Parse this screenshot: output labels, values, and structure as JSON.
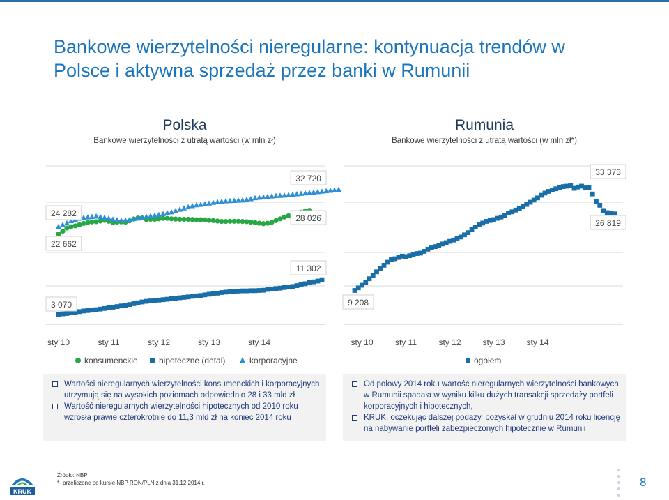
{
  "title": "Bankowe wierzytelności nieregularne: kontynuacja trendów w Polsce i aktywna sprzedaż przez banki w Rumunii",
  "left_panel": {
    "title": "Polska",
    "subtitle": "Bankowe wierzytelności z utratą wartości (w mln zł)",
    "legend": [
      "konsumenckie",
      "hipoteczne (detal)",
      "korporacyjne"
    ],
    "bullets": [
      "Wartości nieregularnych wierzytelności konsumenckich i korporacyjnych utrzymują się na wysokich poziomach odpowiednio 28 i 33 mld zł",
      "Wartość nieregularnych wierzytelności hipotecznych od 2010 roku wzrosła prawie czterokrotnie do 11,3 mld zł na koniec 2014 roku"
    ]
  },
  "right_panel": {
    "title": "Rumunia",
    "subtitle": "Bankowe wierzytelności z utratą wartości (w mln zł*)",
    "legend": [
      "ogółem"
    ],
    "bullets": [
      "Od połowy 2014 roku wartość nieregularnych wierzytelności bankowych w Rumunii spadała w wyniku kilku dużych transakcji sprzedaży portfeli korporacyjnych i hipotecznych,",
      "KRUK, oczekując dalszej podaży, pozyskał w grudniu 2014 roku licencję na nabywanie portfeli zabezpieczonych hipotecznie w Rumunii"
    ]
  },
  "footer": {
    "source": "Źródło: NBP",
    "note": "*- przeliczone po kursie NBP RON/PLN z dnia 31.12.2014 r.",
    "page": "8",
    "logo_text": "KRUK"
  },
  "colors": {
    "consumer": "#27a844",
    "mortgage": "#1a6ea8",
    "corporate": "#2f8fd6",
    "total": "#1a6ea8",
    "accent": "#1b75bc"
  },
  "chart_data": [
    {
      "type": "scatter",
      "title": "Polska",
      "x_ticks": [
        "sty 10",
        "sty 11",
        "sty 12",
        "sty 13",
        "sty 14"
      ],
      "x_start": "2010-01",
      "series": [
        {
          "name": "konsumenckie",
          "marker": "circle",
          "label_first": "22 662",
          "label_last": "28 026",
          "values": [
            22662,
            23300,
            24000,
            24300,
            24500,
            24750,
            25050,
            25250,
            25400,
            25450,
            25600,
            25750,
            25550,
            25200,
            25350,
            25400,
            25350,
            25650,
            26050,
            26300,
            26300,
            25950,
            26000,
            26000,
            26100,
            26200,
            26200,
            26100,
            26050,
            26000,
            26000,
            26000,
            25950,
            25900,
            25900,
            25850,
            25750,
            25700,
            25600,
            25500,
            25500,
            25550,
            25550,
            25550,
            25500,
            25450,
            25350,
            25250,
            25100,
            25000,
            25100,
            25300,
            25700,
            26100,
            26500,
            26800,
            27000,
            27300,
            27600,
            27900,
            28026
          ]
        },
        {
          "name": "hipoteczne (detal)",
          "marker": "square",
          "label_first": "3 070",
          "label_last": "11 302",
          "values": [
            3070,
            3150,
            3250,
            3400,
            3550,
            3700,
            3850,
            3950,
            4050,
            4150,
            4300,
            4450,
            4600,
            4750,
            4900,
            5050,
            5200,
            5400,
            5600,
            5800,
            6000,
            6150,
            6250,
            6350,
            6450,
            6550,
            6650,
            6800,
            6900,
            7000,
            7100,
            7200,
            7350,
            7450,
            7550,
            7700,
            7850,
            7950,
            8100,
            8250,
            8350,
            8450,
            8550,
            8600,
            8650,
            8650,
            8700,
            8700,
            8750,
            8800,
            9000,
            9100,
            9200,
            9300,
            9450,
            9550,
            9700,
            9900,
            10100,
            10350,
            10600,
            10800,
            11000,
            11302
          ]
        },
        {
          "name": "korporacyjne",
          "marker": "triangle",
          "label_first": "24 282",
          "label_last": "32 720",
          "values": [
            24282,
            24700,
            25100,
            25600,
            25900,
            26150,
            26350,
            26450,
            26550,
            26650,
            26500,
            26350,
            26200,
            25950,
            25800,
            25700,
            25750,
            25850,
            26050,
            26200,
            26350,
            26550,
            26700,
            26850,
            27000,
            27200,
            27400,
            27600,
            27900,
            28200,
            28500,
            28750,
            29000,
            29200,
            29300,
            29450,
            29600,
            29750,
            29900,
            30000,
            30100,
            30150,
            30200,
            30250,
            30300,
            30450,
            30600,
            30800,
            30900,
            31000,
            31100,
            31200,
            31300,
            31350,
            31400,
            31500,
            31600,
            31700,
            31800,
            31900,
            32000,
            32100,
            32200,
            32300,
            32400,
            32500,
            32600,
            32720
          ]
        }
      ]
    },
    {
      "type": "scatter",
      "title": "Rumunia",
      "x_ticks": [
        "sty 10",
        "sty 11",
        "sty 12",
        "sty 13",
        "sty 14"
      ],
      "x_start": "2009-11",
      "series": [
        {
          "name": "ogółem",
          "marker": "square",
          "label_first": "9 208",
          "label_last": "26 819",
          "label_max": "33 373",
          "values": [
            9208,
            9800,
            10400,
            11100,
            11900,
            12700,
            13500,
            14300,
            15000,
            15700,
            16400,
            16500,
            16800,
            17100,
            17000,
            17200,
            17500,
            17700,
            17800,
            18200,
            18700,
            19000,
            19300,
            19600,
            19900,
            20200,
            20500,
            20800,
            21100,
            21500,
            22000,
            22500,
            23200,
            23800,
            24300,
            24700,
            25100,
            25300,
            25500,
            25800,
            26100,
            26500,
            27000,
            27300,
            27700,
            28000,
            28500,
            29000,
            29500,
            30000,
            30500,
            31100,
            31600,
            32000,
            32300,
            32600,
            32900,
            33100,
            33200,
            33373,
            32700,
            33000,
            33200,
            32800,
            32900,
            31400,
            29700,
            28800,
            27600,
            27100,
            26900,
            26819
          ]
        }
      ]
    }
  ]
}
